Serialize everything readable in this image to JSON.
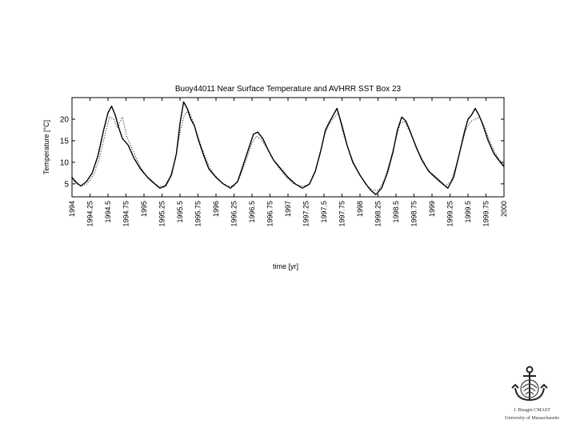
{
  "chart_data": {
    "type": "line",
    "title": "Buoy44011 Near Surface Temperature and AVHRR SST Box 23",
    "xlabel": "time [yr]",
    "ylabel": "Temperature [°C]",
    "xlim": [
      1994,
      2000
    ],
    "ylim": [
      2,
      25
    ],
    "xticks": [
      "1994",
      "1994.25",
      "1994.5",
      "1994.75",
      "1995",
      "1995.25",
      "1995.5",
      "1995.75",
      "1996",
      "1996.25",
      "1996.5",
      "1996.75",
      "1997",
      "1997.25",
      "1997.5",
      "1997.75",
      "1998",
      "1998.25",
      "1998.5",
      "1998.75",
      "1999",
      "1999.25",
      "1999.5",
      "1999.75",
      "2000"
    ],
    "yticks": [
      5,
      10,
      15,
      20
    ],
    "grid": false,
    "series": [
      {
        "style": "solid",
        "x": [
          1994.0,
          1994.05,
          1994.12,
          1994.2,
          1994.28,
          1994.36,
          1994.44,
          1994.5,
          1994.55,
          1994.6,
          1994.65,
          1994.7,
          1994.78,
          1994.86,
          1994.95,
          1995.05,
          1995.15,
          1995.22,
          1995.3,
          1995.38,
          1995.45,
          1995.5,
          1995.55,
          1995.6,
          1995.65,
          1995.7,
          1995.75,
          1995.82,
          1995.9,
          1996.0,
          1996.1,
          1996.2,
          1996.3,
          1996.38,
          1996.46,
          1996.52,
          1996.58,
          1996.65,
          1996.72,
          1996.8,
          1996.9,
          1997.0,
          1997.1,
          1997.2,
          1997.3,
          1997.38,
          1997.46,
          1997.52,
          1997.58,
          1997.63,
          1997.68,
          1997.75,
          1997.82,
          1997.9,
          1998.0,
          1998.08,
          1998.15,
          1998.22,
          1998.3,
          1998.38,
          1998.46,
          1998.52,
          1998.58,
          1998.64,
          1998.7,
          1998.78,
          1998.86,
          1998.95,
          1999.05,
          1999.15,
          1999.22,
          1999.3,
          1999.38,
          1999.45,
          1999.5,
          1999.55,
          1999.6,
          1999.65,
          1999.7,
          1999.78,
          1999.86,
          1999.95,
          2000.0
        ],
        "y": [
          6.5,
          5.5,
          4.5,
          5.5,
          7.5,
          11.5,
          17.5,
          21.5,
          23.0,
          21.0,
          18.0,
          15.5,
          14.0,
          11.0,
          8.5,
          6.5,
          5.0,
          4.0,
          4.5,
          7.0,
          12.0,
          19.0,
          24.0,
          22.5,
          20.0,
          18.5,
          15.5,
          12.0,
          8.5,
          6.5,
          5.0,
          4.0,
          5.5,
          9.5,
          13.5,
          16.5,
          17.0,
          15.5,
          13.0,
          10.5,
          8.5,
          6.5,
          5.0,
          4.0,
          5.0,
          8.0,
          13.0,
          17.5,
          19.5,
          21.0,
          22.5,
          18.5,
          14.0,
          10.0,
          7.0,
          5.0,
          3.5,
          2.5,
          4.0,
          7.5,
          12.5,
          17.5,
          20.5,
          19.5,
          17.0,
          13.5,
          10.5,
          8.0,
          6.5,
          5.0,
          4.0,
          6.5,
          12.0,
          17.0,
          20.0,
          21.0,
          22.5,
          21.0,
          19.0,
          15.0,
          12.0,
          10.0,
          9.0
        ]
      },
      {
        "style": "dotted",
        "x": [
          1994.0,
          1994.06,
          1994.13,
          1994.21,
          1994.3,
          1994.38,
          1994.46,
          1994.52,
          1994.58,
          1994.63,
          1994.7,
          1994.76,
          1994.84,
          1994.92,
          1995.0,
          1995.1,
          1995.2,
          1995.28,
          1995.36,
          1995.44,
          1995.5,
          1995.56,
          1995.62,
          1995.68,
          1995.74,
          1995.8,
          1995.88,
          1995.96,
          1996.06,
          1996.16,
          1996.25,
          1996.33,
          1996.42,
          1996.5,
          1996.56,
          1996.62,
          1996.7,
          1996.78,
          1996.88,
          1996.98,
          1997.08,
          1997.18,
          1997.28,
          1997.36,
          1997.44,
          1997.5,
          1997.56,
          1997.62,
          1997.7,
          1997.76,
          1997.84,
          1997.92,
          1998.02,
          1998.1,
          1998.18,
          1998.26,
          1998.34,
          1998.42,
          1998.5,
          1998.56,
          1998.62,
          1998.68,
          1998.76,
          1998.84,
          1998.92,
          1999.0,
          1999.1,
          1999.18,
          1999.26,
          1999.34,
          1999.42,
          1999.48,
          1999.54,
          1999.6,
          1999.66,
          1999.72,
          1999.8,
          1999.88,
          1999.96,
          2000.0
        ],
        "y": [
          6.0,
          5.0,
          4.5,
          5.0,
          7.0,
          11.0,
          16.5,
          20.5,
          20.0,
          18.0,
          20.5,
          16.0,
          13.0,
          10.0,
          7.5,
          5.5,
          4.5,
          4.5,
          6.5,
          11.0,
          17.0,
          21.0,
          22.0,
          19.5,
          16.5,
          13.5,
          10.0,
          7.5,
          5.5,
          4.5,
          4.5,
          6.5,
          10.5,
          14.5,
          16.0,
          15.5,
          13.5,
          11.0,
          8.5,
          6.5,
          5.0,
          4.5,
          4.5,
          7.0,
          11.5,
          16.0,
          18.5,
          20.0,
          21.5,
          17.0,
          13.0,
          9.5,
          6.5,
          4.5,
          3.5,
          3.5,
          6.0,
          10.5,
          15.5,
          19.0,
          19.5,
          17.5,
          14.5,
          11.5,
          9.0,
          7.0,
          5.5,
          4.5,
          5.5,
          9.5,
          14.5,
          18.0,
          19.5,
          20.0,
          20.5,
          18.5,
          15.0,
          12.0,
          10.0,
          9.5
        ]
      }
    ]
  },
  "credit": {
    "line1": "J. Bisagni CMAST",
    "line2": "University of Massachusetts"
  }
}
